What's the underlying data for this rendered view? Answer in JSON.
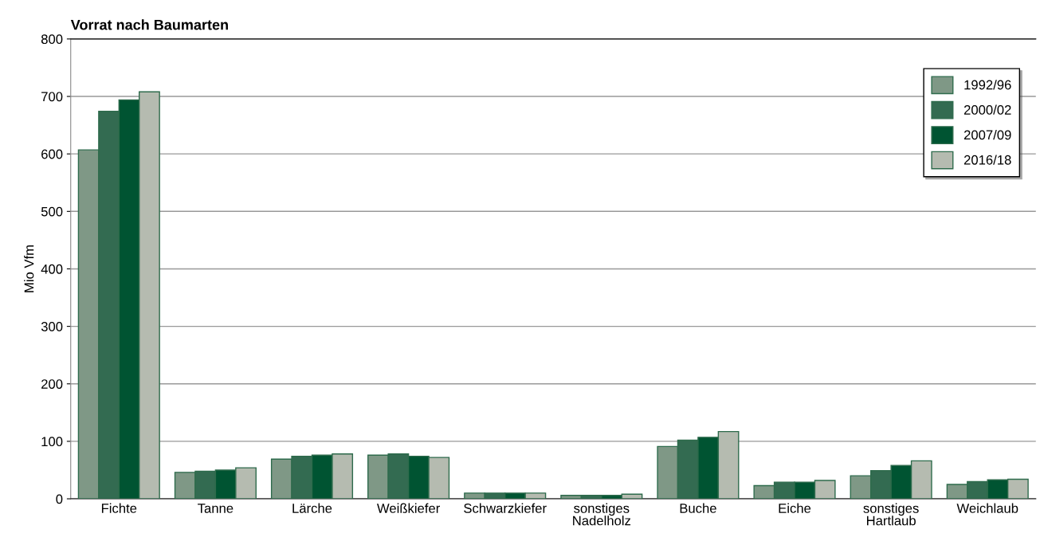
{
  "chart_data": {
    "type": "bar",
    "title": "Vorrat nach Baumarten",
    "ylabel": "Mio Vfm",
    "categories": [
      "Fichte",
      "Tanne",
      "Lärche",
      "Weißkiefer",
      "Schwarzkiefer",
      "sonstiges\nNadelholz",
      "Buche",
      "Eiche",
      "sonstiges\nHartlaub",
      "Weichlaub"
    ],
    "series": [
      {
        "name": "1992/96",
        "color": "#7f9886",
        "values": [
          607,
          46,
          69,
          76,
          10,
          6,
          91,
          23,
          40,
          25
        ]
      },
      {
        "name": "2000/02",
        "color": "#336b51",
        "values": [
          674,
          48,
          74,
          78,
          10,
          6,
          102,
          29,
          49,
          30
        ]
      },
      {
        "name": "2007/09",
        "color": "#005432",
        "values": [
          694,
          50,
          76,
          74,
          10,
          6,
          107,
          29,
          58,
          33
        ]
      },
      {
        "name": "2016/18",
        "color": "#b5bbb0",
        "values": [
          708,
          54,
          78,
          72,
          10,
          8,
          117,
          32,
          66,
          34
        ]
      }
    ],
    "ylim": [
      0,
      800
    ],
    "yticks": [
      0,
      100,
      200,
      300,
      400,
      500,
      600,
      700,
      800
    ],
    "grid": "y",
    "legend": "top right"
  }
}
